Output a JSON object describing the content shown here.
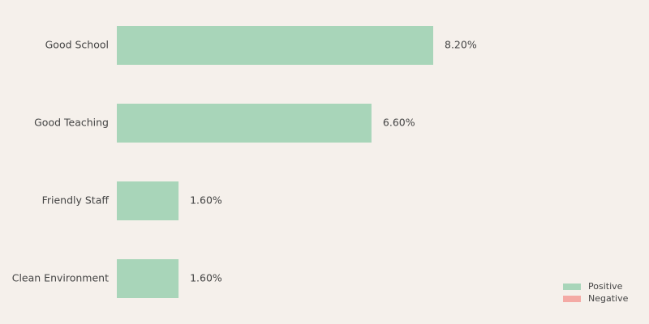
{
  "chart_data": {
    "type": "bar",
    "orientation": "horizontal",
    "categories": [
      "Good School",
      "Good Teaching",
      "Friendly Staff",
      "Clean Environment"
    ],
    "series": [
      {
        "name": "Positive",
        "color": "#a8d5b9",
        "values": [
          8.2,
          6.6,
          1.6,
          1.6
        ],
        "value_labels": [
          "8.20%",
          "6.60%",
          "1.60%",
          "1.60%"
        ]
      },
      {
        "name": "Negative",
        "color": "#f4aaa5",
        "values": [
          null,
          null,
          null,
          null
        ]
      }
    ],
    "legend": "lower right"
  }
}
